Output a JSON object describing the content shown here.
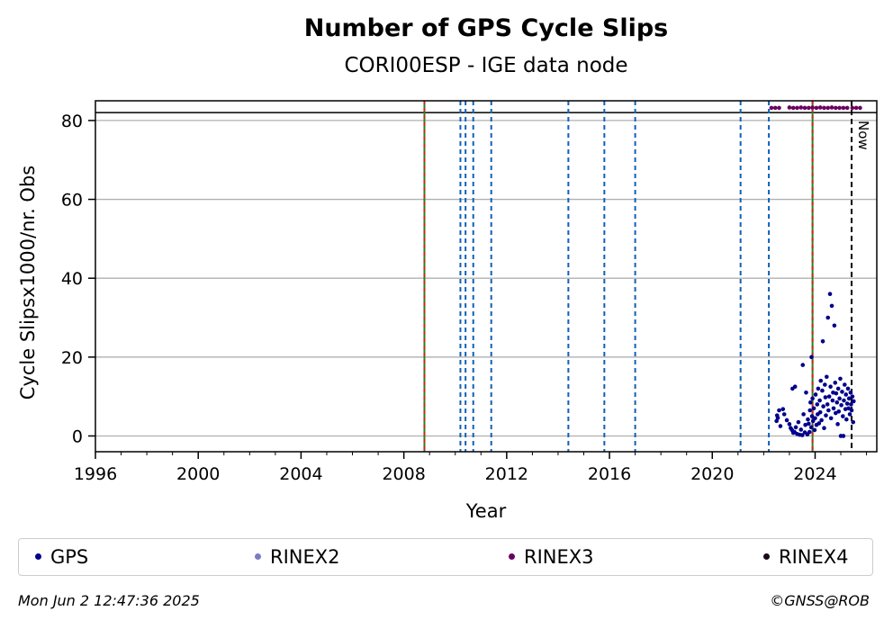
{
  "footer": {
    "timestamp": "Mon Jun  2 12:47:36 2025",
    "credit": "©GNSS@ROB"
  },
  "chart_data": {
    "type": "scatter",
    "title": "Number of GPS Cycle Slips",
    "subtitle": "CORI00ESP - IGE data node",
    "xlabel": "Year",
    "ylabel": "Cycle Slipsx1000/nr. Obs",
    "xlim": [
      1996,
      2026.4
    ],
    "ylim": [
      -4,
      85
    ],
    "x_ticks": [
      1996,
      2000,
      2004,
      2008,
      2012,
      2016,
      2020,
      2024
    ],
    "y_ticks": [
      0,
      20,
      40,
      60,
      80
    ],
    "grid": "horizontal",
    "legend_position": "bottom",
    "legend": [
      {
        "name": "GPS",
        "color": "#00008b"
      },
      {
        "name": "RINEX2",
        "color": "#7b7bbf"
      },
      {
        "name": "RINEX3",
        "color": "#6b005f"
      },
      {
        "name": "RINEX4",
        "color": "#1a0a1a"
      }
    ],
    "reference_line_y": 82,
    "now_label": "Now",
    "now_x": 2025.42,
    "event_lines_red_green": [
      2008.8,
      2023.9
    ],
    "event_lines_blue": [
      2010.2,
      2010.4,
      2010.7,
      2011.4,
      2014.4,
      2015.8,
      2017.0,
      2021.1,
      2022.2
    ],
    "series": [
      {
        "name": "GPS",
        "color": "#00008b",
        "points": [
          [
            2022.5,
            3.8
          ],
          [
            2022.52,
            5.2
          ],
          [
            2022.55,
            4.6
          ],
          [
            2022.6,
            6.5
          ],
          [
            2022.65,
            2.5
          ],
          [
            2022.75,
            6.8
          ],
          [
            2022.8,
            5.5
          ],
          [
            2022.9,
            4.0
          ],
          [
            2023.0,
            3.0
          ],
          [
            2023.05,
            2.0
          ],
          [
            2023.1,
            1.5
          ],
          [
            2023.12,
            12.0
          ],
          [
            2023.15,
            0.8
          ],
          [
            2023.2,
            1.0
          ],
          [
            2023.22,
            12.5
          ],
          [
            2023.25,
            2.2
          ],
          [
            2023.3,
            0.5
          ],
          [
            2023.35,
            3.5
          ],
          [
            2023.4,
            0.3
          ],
          [
            2023.45,
            1.6
          ],
          [
            2023.5,
            0.2
          ],
          [
            2023.52,
            18.0
          ],
          [
            2023.55,
            5.5
          ],
          [
            2023.6,
            0.9
          ],
          [
            2023.62,
            2.8
          ],
          [
            2023.65,
            11.0
          ],
          [
            2023.7,
            0.4
          ],
          [
            2023.72,
            4.2
          ],
          [
            2023.75,
            3.1
          ],
          [
            2023.78,
            1.0
          ],
          [
            2023.8,
            6.5
          ],
          [
            2023.82,
            8.5
          ],
          [
            2023.85,
            2.2
          ],
          [
            2023.86,
            20.0
          ],
          [
            2023.88,
            5.0
          ],
          [
            2023.9,
            9.5
          ],
          [
            2023.92,
            3.8
          ],
          [
            2023.95,
            7.0
          ],
          [
            2023.98,
            1.5
          ],
          [
            2024.0,
            4.5
          ],
          [
            2024.02,
            10.5
          ],
          [
            2024.05,
            2.8
          ],
          [
            2024.08,
            8.0
          ],
          [
            2024.1,
            5.5
          ],
          [
            2024.12,
            12.0
          ],
          [
            2024.15,
            3.2
          ],
          [
            2024.18,
            9.0
          ],
          [
            2024.2,
            6.0
          ],
          [
            2024.22,
            14.0
          ],
          [
            2024.25,
            4.0
          ],
          [
            2024.28,
            11.5
          ],
          [
            2024.3,
            24.0
          ],
          [
            2024.32,
            7.5
          ],
          [
            2024.35,
            2.0
          ],
          [
            2024.38,
            13.0
          ],
          [
            2024.4,
            9.8
          ],
          [
            2024.42,
            5.2
          ],
          [
            2024.45,
            15.0
          ],
          [
            2024.48,
            8.0
          ],
          [
            2024.5,
            30.0
          ],
          [
            2024.52,
            6.5
          ],
          [
            2024.55,
            10.0
          ],
          [
            2024.58,
            36.0
          ],
          [
            2024.6,
            12.5
          ],
          [
            2024.62,
            4.5
          ],
          [
            2024.65,
            33.0
          ],
          [
            2024.68,
            9.0
          ],
          [
            2024.7,
            11.0
          ],
          [
            2024.72,
            7.0
          ],
          [
            2024.75,
            28.0
          ],
          [
            2024.78,
            13.5
          ],
          [
            2024.8,
            5.8
          ],
          [
            2024.82,
            10.8
          ],
          [
            2024.85,
            8.5
          ],
          [
            2024.88,
            3.0
          ],
          [
            2024.9,
            12.0
          ],
          [
            2024.92,
            6.2
          ],
          [
            2024.95,
            9.5
          ],
          [
            2024.98,
            14.5
          ],
          [
            2025.0,
            0.0
          ],
          [
            2025.02,
            7.8
          ],
          [
            2025.05,
            11.2
          ],
          [
            2025.08,
            5.0
          ],
          [
            2025.1,
            0.0
          ],
          [
            2025.12,
            9.0
          ],
          [
            2025.15,
            13.0
          ],
          [
            2025.18,
            6.8
          ],
          [
            2025.2,
            10.5
          ],
          [
            2025.22,
            4.2
          ],
          [
            2025.25,
            8.2
          ],
          [
            2025.28,
            12.0
          ],
          [
            2025.3,
            7.0
          ],
          [
            2025.32,
            9.5
          ],
          [
            2025.35,
            5.5
          ],
          [
            2025.38,
            11.0
          ],
          [
            2025.4,
            8.0
          ],
          [
            2025.42,
            6.5
          ],
          [
            2025.45,
            10.0
          ],
          [
            2025.48,
            3.5
          ],
          [
            2025.5,
            8.8
          ]
        ]
      },
      {
        "name": "RINEX3",
        "color": "#6b005f",
        "points": [
          [
            2022.3,
            83.2
          ],
          [
            2022.45,
            83.2
          ],
          [
            2022.6,
            83.2
          ],
          [
            2023.0,
            83.3
          ],
          [
            2023.15,
            83.2
          ],
          [
            2023.3,
            83.2
          ],
          [
            2023.45,
            83.3
          ],
          [
            2023.6,
            83.2
          ],
          [
            2023.75,
            83.2
          ],
          [
            2023.9,
            83.3
          ],
          [
            2024.05,
            83.2
          ],
          [
            2024.2,
            83.3
          ],
          [
            2024.35,
            83.2
          ],
          [
            2024.5,
            83.2
          ],
          [
            2024.65,
            83.3
          ],
          [
            2024.8,
            83.2
          ],
          [
            2024.95,
            83.2
          ],
          [
            2025.1,
            83.2
          ],
          [
            2025.25,
            83.2
          ],
          [
            2025.45,
            83.2
          ],
          [
            2025.6,
            83.2
          ],
          [
            2025.75,
            83.2
          ]
        ]
      }
    ]
  }
}
